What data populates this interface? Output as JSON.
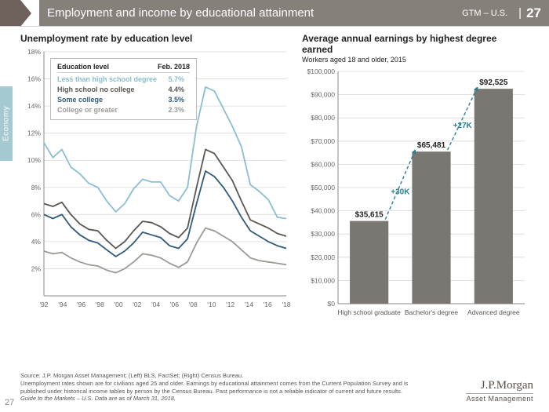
{
  "header": {
    "title": "Employment and income by educational attainment",
    "gtm": "GTM – U.S.",
    "page": "27"
  },
  "tab_label": "Economy",
  "left_chart": {
    "title": "Unemployment rate by education level",
    "type": "line",
    "ylabel_suffix": "%",
    "ylim": [
      0,
      18
    ],
    "ytick_step": 2,
    "x_year_start": 1992,
    "x_year_end": 2018,
    "xtick_step": 2,
    "background_color": "#ffffff",
    "grid_color": "#d8d8d8",
    "axis_font_size": 8.5,
    "line_width": 1.8,
    "legend": {
      "header_label": "Education level",
      "header_val": "Feb. 2018",
      "rows": [
        {
          "label": "Less than high school degree",
          "value": "5.7%",
          "color": "#8abed1"
        },
        {
          "label": "High school no college",
          "value": "4.4%",
          "color": "#5c5650"
        },
        {
          "label": "Some college",
          "value": "3.5%",
          "color": "#2f5b7a"
        },
        {
          "label": "College or greater",
          "value": "2.3%",
          "color": "#9e9a95"
        }
      ]
    },
    "series": [
      {
        "color": "#8abed1",
        "ys": [
          11.3,
          10.2,
          10.8,
          9.5,
          9.0,
          8.3,
          8.0,
          7.0,
          6.2,
          6.8,
          7.9,
          8.6,
          8.4,
          8.4,
          7.4,
          7.0,
          8.0,
          12.5,
          15.4,
          15.1,
          13.8,
          12.5,
          11.0,
          8.2,
          7.7,
          7.1,
          5.8,
          5.7
        ]
      },
      {
        "color": "#5c5650",
        "ys": [
          6.8,
          6.6,
          6.9,
          6.0,
          5.3,
          4.9,
          4.8,
          4.1,
          3.5,
          4.0,
          4.8,
          5.5,
          5.4,
          5.1,
          4.6,
          4.3,
          5.0,
          8.0,
          10.8,
          10.5,
          9.5,
          8.5,
          7.0,
          5.6,
          5.3,
          5.0,
          4.6,
          4.4
        ]
      },
      {
        "color": "#2f5b7a",
        "ys": [
          6.0,
          5.7,
          6.0,
          5.1,
          4.5,
          4.1,
          3.9,
          3.4,
          2.9,
          3.3,
          3.9,
          4.7,
          4.5,
          4.3,
          3.7,
          3.5,
          4.2,
          6.8,
          9.2,
          8.8,
          8.0,
          7.0,
          5.8,
          4.8,
          4.4,
          4.0,
          3.7,
          3.5
        ]
      },
      {
        "color": "#9e9a95",
        "ys": [
          3.3,
          3.1,
          3.2,
          2.8,
          2.5,
          2.3,
          2.2,
          1.9,
          1.7,
          2.0,
          2.5,
          3.1,
          3.0,
          2.8,
          2.4,
          2.1,
          2.5,
          3.9,
          5.0,
          4.8,
          4.4,
          4.0,
          3.4,
          2.8,
          2.6,
          2.5,
          2.4,
          2.3
        ]
      }
    ]
  },
  "right_chart": {
    "title": "Average annual earnings by highest degree earned",
    "subtitle": "Workers aged 18 and older, 2015",
    "type": "bar",
    "ylim": [
      0,
      100000
    ],
    "ytick_step": 10000,
    "y_prefix": "$",
    "bars": [
      {
        "label": "High school graduate",
        "value": 35615,
        "value_fmt": "$35,615"
      },
      {
        "label": "Bachelor's degree",
        "value": 65481,
        "value_fmt": "$65,481"
      },
      {
        "label": "Advanced degree",
        "value": 92525,
        "value_fmt": "$92,525"
      }
    ],
    "increments": [
      {
        "label": "+30K",
        "color": "#267f98"
      },
      {
        "label": "+27K",
        "color": "#267f98"
      }
    ],
    "bar_color": "#7a7772",
    "bar_width": 0.62,
    "background_color": "#ffffff",
    "grid_color": "#d8d8d8",
    "axis_font_size": 8.5
  },
  "footer": {
    "line1": "Source: J.P. Morgan Asset Management; (Left) BLS, FactSet; (Right) Census Bureau.",
    "line2": "Unemployment rates shown are for civilians aged 25 and older. Earnings by educational attainment comes from the Current Population Survey and is published under historical income tables by person by the Census Bureau. Past performance is not a reliable indicator of current and future results.",
    "line3": "Guide to the Markets – U.S. Data are as of March 31, 2018.",
    "logo_main": "J.P.Morgan",
    "logo_sub": "Asset Management",
    "page_num": "27"
  }
}
